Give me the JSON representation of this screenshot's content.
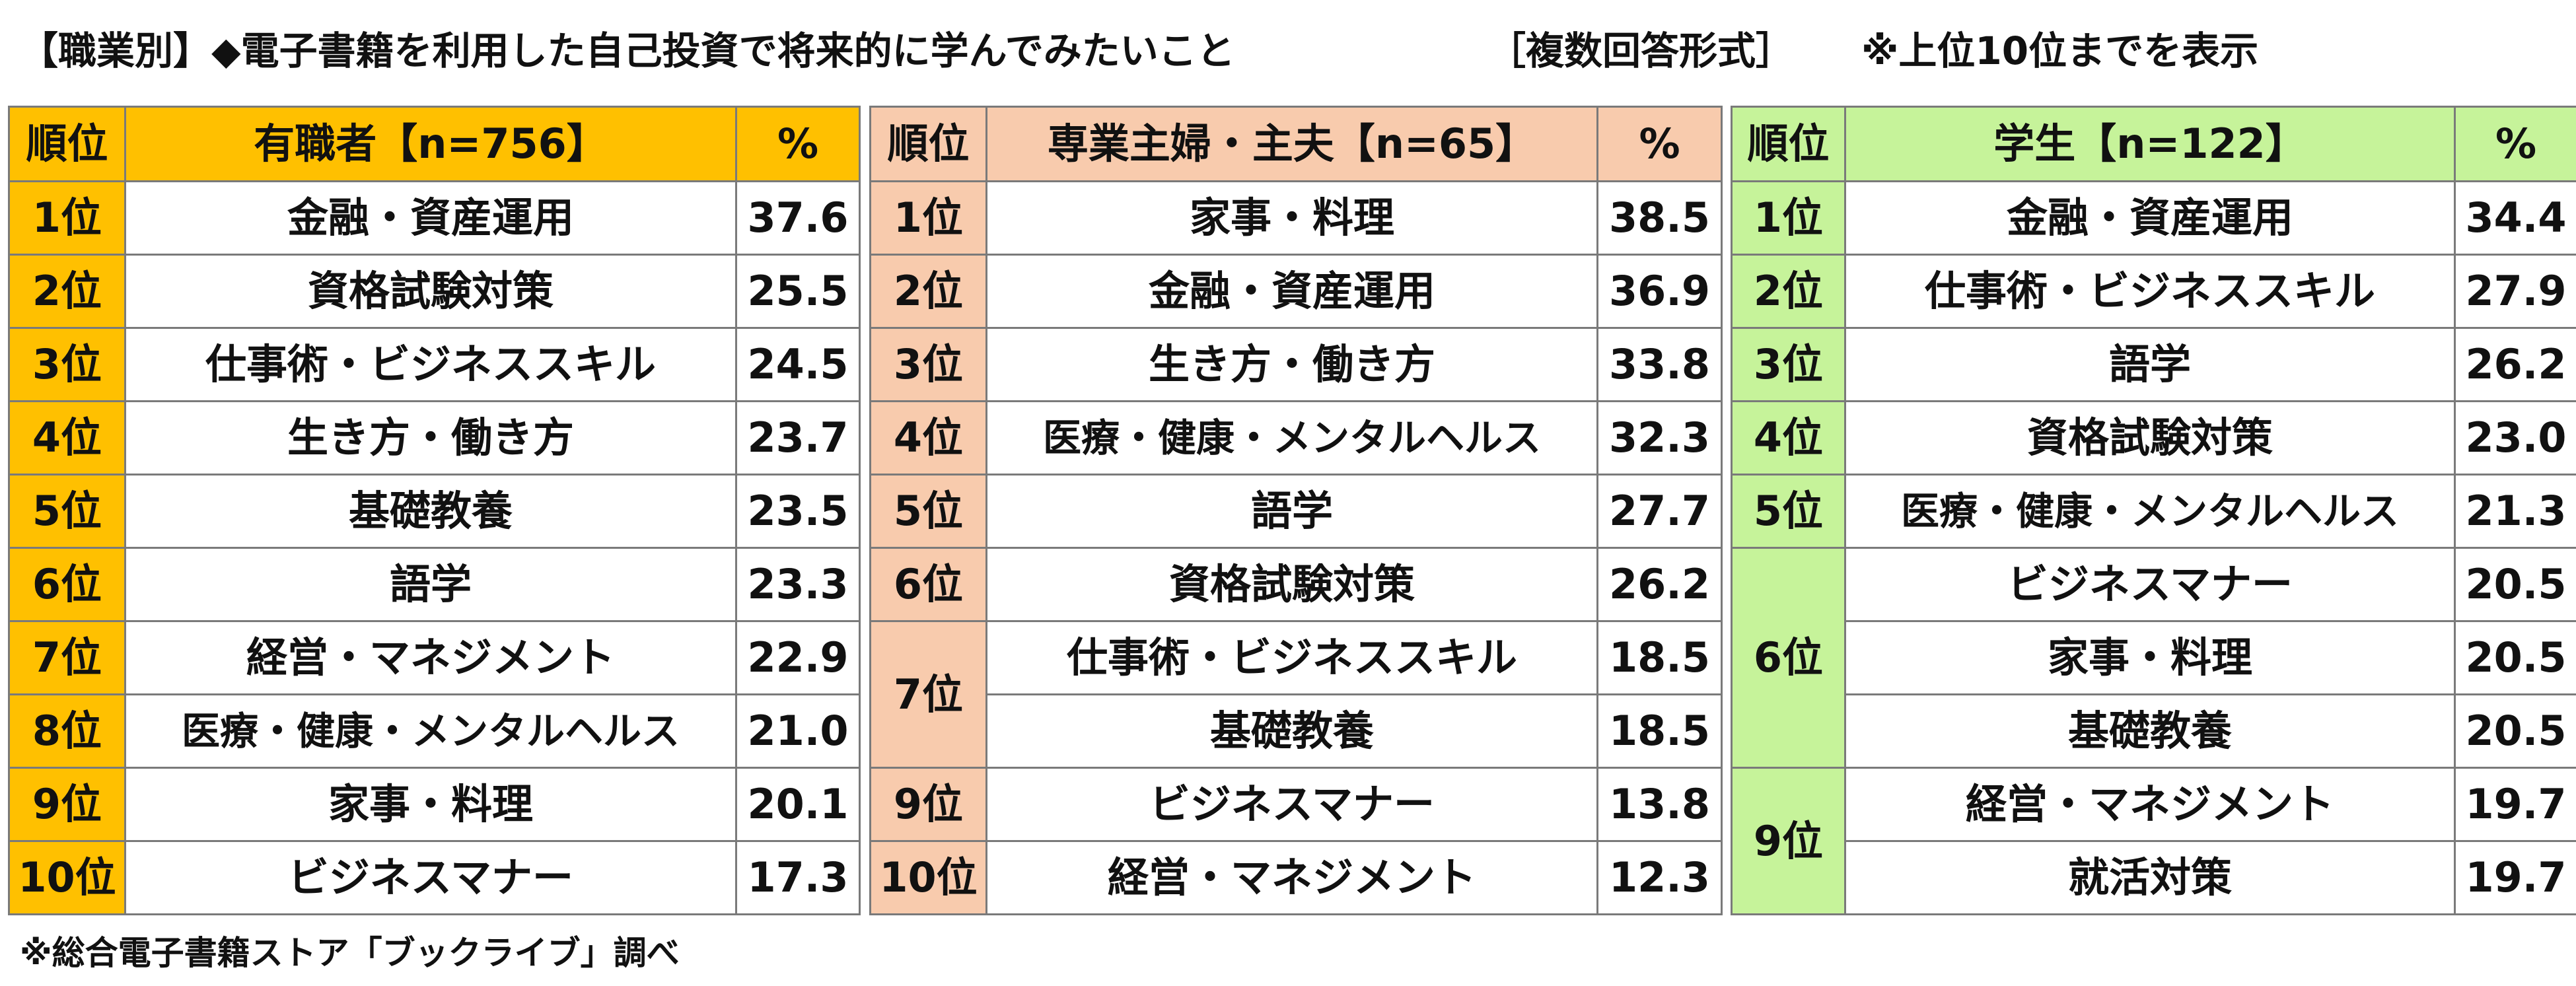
{
  "header": {
    "title": "【職業別】◆電子書籍を利用した自己投資で将来的に学んでみたいこと",
    "format": "［複数回答形式］",
    "note": "※上位10位までを表示"
  },
  "tables": [
    {
      "rank_header": "順位",
      "group_header": "有職者【n=756】",
      "pct_header": "%",
      "accent_color": "#ffc000",
      "rows": [
        {
          "rank": "1位",
          "item": "金融・資産運用",
          "pct": "37.6"
        },
        {
          "rank": "2位",
          "item": "資格試験対策",
          "pct": "25.5"
        },
        {
          "rank": "3位",
          "item": "仕事術・ビジネススキル",
          "pct": "24.5"
        },
        {
          "rank": "4位",
          "item": "生き方・働き方",
          "pct": "23.7"
        },
        {
          "rank": "5位",
          "item": "基礎教養",
          "pct": "23.5"
        },
        {
          "rank": "6位",
          "item": "語学",
          "pct": "23.3"
        },
        {
          "rank": "7位",
          "item": "経営・マネジメント",
          "pct": "22.9"
        },
        {
          "rank": "8位",
          "item": "医療・健康・メンタルヘルス",
          "pct": "21.0"
        },
        {
          "rank": "9位",
          "item": "家事・料理",
          "pct": "20.1"
        },
        {
          "rank": "10位",
          "item": "ビジネスマナー",
          "pct": "17.3"
        }
      ]
    },
    {
      "rank_header": "順位",
      "group_header": "専業主婦・主夫【n=65】",
      "pct_header": "%",
      "accent_color": "#f8cbad",
      "rows": [
        {
          "rank": "1位",
          "item": "家事・料理",
          "pct": "38.5"
        },
        {
          "rank": "2位",
          "item": "金融・資産運用",
          "pct": "36.9"
        },
        {
          "rank": "3位",
          "item": "生き方・働き方",
          "pct": "33.8"
        },
        {
          "rank": "4位",
          "item": "医療・健康・メンタルヘルス",
          "pct": "32.3"
        },
        {
          "rank": "5位",
          "item": "語学",
          "pct": "27.7"
        },
        {
          "rank": "6位",
          "item": "資格試験対策",
          "pct": "26.2"
        },
        {
          "rank": "7位",
          "item": "仕事術・ビジネススキル",
          "pct": "18.5"
        },
        {
          "rank": "",
          "item": "基礎教養",
          "pct": "18.5"
        },
        {
          "rank": "9位",
          "item": "ビジネスマナー",
          "pct": "13.8"
        },
        {
          "rank": "10位",
          "item": "経営・マネジメント",
          "pct": "12.3"
        }
      ]
    },
    {
      "rank_header": "順位",
      "group_header": "学生【n=122】",
      "pct_header": "%",
      "accent_color": "#c6f39a",
      "rows": [
        {
          "rank": "1位",
          "item": "金融・資産運用",
          "pct": "34.4"
        },
        {
          "rank": "2位",
          "item": "仕事術・ビジネススキル",
          "pct": "27.9"
        },
        {
          "rank": "3位",
          "item": "語学",
          "pct": "26.2"
        },
        {
          "rank": "4位",
          "item": "資格試験対策",
          "pct": "23.0"
        },
        {
          "rank": "5位",
          "item": "医療・健康・メンタルヘルス",
          "pct": "21.3"
        },
        {
          "rank": "6位",
          "item": "ビジネスマナー",
          "pct": "20.5"
        },
        {
          "rank": "",
          "item": "家事・料理",
          "pct": "20.5"
        },
        {
          "rank": "",
          "item": "基礎教養",
          "pct": "20.5"
        },
        {
          "rank": "9位",
          "item": "経営・マネジメント",
          "pct": "19.7"
        },
        {
          "rank": "",
          "item": "就活対策",
          "pct": "19.7"
        }
      ]
    }
  ],
  "footer": {
    "source": "※総合電子書籍ストア「ブックライブ」調べ"
  }
}
